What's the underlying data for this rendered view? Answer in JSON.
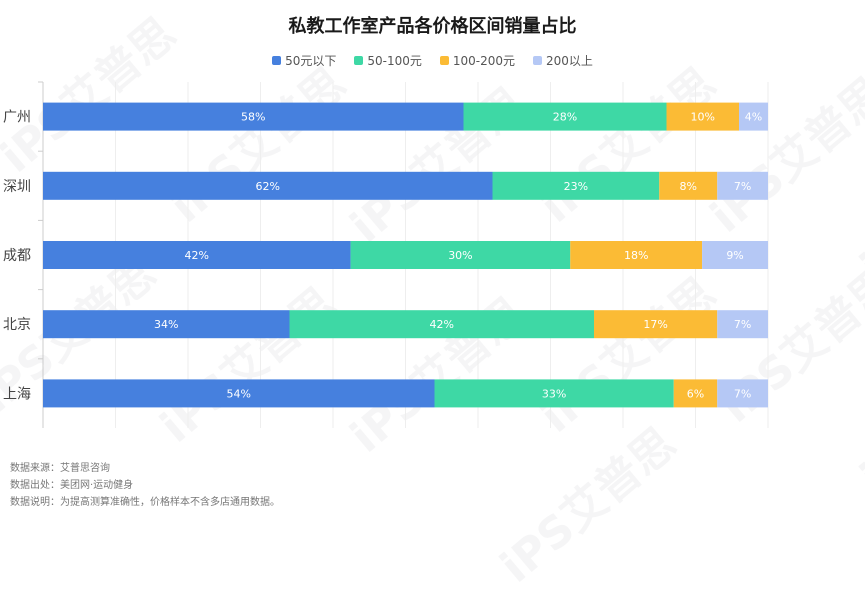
{
  "chart_data": {
    "type": "bar",
    "orientation": "horizontal",
    "stacked": true,
    "title": "私教工作室产品各价格区间销量占比",
    "categories": [
      "广州",
      "深圳",
      "成都",
      "北京",
      "上海"
    ],
    "series": [
      {
        "name": "50元以下",
        "values": [
          58,
          62,
          42,
          34,
          54
        ],
        "color": "#4680DE"
      },
      {
        "name": "50-100元",
        "values": [
          28,
          23,
          30,
          42,
          33
        ],
        "color": "#3ED8A5"
      },
      {
        "name": "100-200元",
        "values": [
          10,
          8,
          18,
          17,
          6
        ],
        "color": "#FBBB35"
      },
      {
        "name": "200以上",
        "values": [
          4,
          7,
          9,
          7,
          7
        ],
        "color": "#B5C8F5"
      }
    ],
    "value_suffix": "%",
    "legend_position": "top-center",
    "grid": true
  },
  "notes": [
    {
      "label": "数据来源：",
      "text": "艾普思咨询"
    },
    {
      "label": "数据出处：",
      "text": "美团网·运动健身"
    },
    {
      "label": "数据说明：",
      "text": "为提高测算准确性，价格样本不含多店通用数据。"
    }
  ],
  "watermark": "iPS艾普思"
}
